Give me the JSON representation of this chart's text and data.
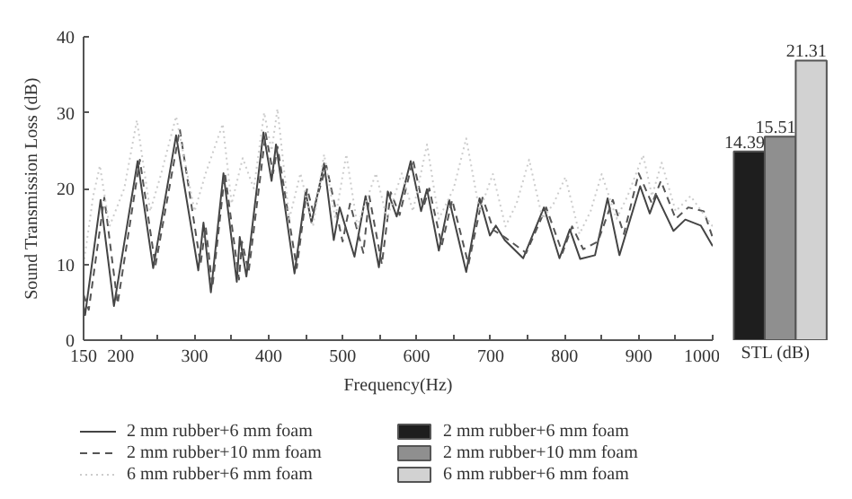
{
  "chart_data": [
    {
      "type": "line",
      "xlabel": "Frequency(Hz)",
      "ylabel": "Sound Transmission Loss (dB)",
      "xlim": [
        150,
        1000
      ],
      "ylim": [
        0,
        40
      ],
      "xticks": [
        150,
        200,
        {
          "value": 250,
          "label": null
        },
        300,
        {
          "value": 350,
          "label": null
        },
        400,
        {
          "value": 450,
          "label": null
        },
        500,
        {
          "value": 550,
          "label": null
        },
        600,
        {
          "value": 650,
          "label": null
        },
        700,
        {
          "value": 750,
          "label": null
        },
        800,
        {
          "value": 850,
          "label": null
        },
        900,
        {
          "value": 950,
          "label": null
        },
        1000
      ],
      "yticks": [
        0,
        10,
        20,
        30,
        40
      ],
      "grid": false,
      "legend": "bottom",
      "series": [
        {
          "name": "2 mm rubber+6 mm foam",
          "color": "#444444",
          "line_style": "solid",
          "x": [
            150,
            152,
            173,
            191,
            223,
            244,
            275,
            305,
            312,
            322,
            339,
            357,
            361,
            370,
            393,
            404,
            410,
            435,
            450,
            458,
            475,
            488,
            496,
            516,
            531,
            549,
            561,
            573,
            592,
            606,
            614,
            630,
            644,
            667,
            685,
            699,
            707,
            719,
            744,
            772,
            793,
            807,
            821,
            841,
            858,
            874,
            902,
            915,
            924,
            947,
            963,
            984,
            1000
          ],
          "values": [
            4.5,
            3.3,
            18.5,
            4.5,
            23.6,
            9.5,
            27,
            9.2,
            15.5,
            6.3,
            22,
            7.7,
            13.6,
            8.4,
            27.4,
            21,
            25.8,
            8.8,
            19.5,
            15.5,
            23.3,
            13.2,
            17.5,
            11,
            19,
            9.6,
            19.6,
            16.3,
            23.6,
            17,
            19.9,
            11.8,
            18.5,
            9,
            18.7,
            13.8,
            15.1,
            13.2,
            10.8,
            17.5,
            10.8,
            14.6,
            10.7,
            11.2,
            18.7,
            11.2,
            20.3,
            16.7,
            19.1,
            14.4,
            15.9,
            15.1,
            12.4
          ]
        },
        {
          "name": "2 mm rubber+10 mm foam",
          "color": "#555555",
          "line_style": "dashed",
          "x": [
            150,
            157,
            178,
            196,
            226,
            247,
            280,
            308,
            315,
            324,
            341,
            360,
            364,
            373,
            396,
            406,
            412,
            438,
            452,
            460,
            478,
            500,
            510,
            528,
            536,
            553,
            565,
            577,
            595,
            609,
            617,
            634,
            648,
            670,
            689,
            704,
            720,
            748,
            775,
            797,
            810,
            825,
            845,
            865,
            880,
            900,
            918,
            930,
            950,
            967,
            988,
            1000
          ],
          "values": [
            6,
            4,
            18.8,
            4.8,
            23.8,
            9.8,
            27.8,
            10,
            15,
            7,
            22,
            8,
            13,
            9,
            27.3,
            22,
            25.5,
            9.5,
            20,
            17,
            23,
            13,
            18,
            11.5,
            19,
            10,
            19.5,
            16.5,
            23.8,
            17.5,
            20,
            12.5,
            18.5,
            10,
            18.8,
            14.5,
            13.5,
            11.5,
            17.5,
            11.5,
            15,
            12,
            13,
            18.5,
            14,
            22,
            18,
            21,
            16,
            17.5,
            17,
            13.5
          ]
        },
        {
          "name": "6 mm rubber+6 mm foam",
          "color": "#cccccc",
          "line_style": "dotted",
          "x": [
            150,
            163,
            172,
            185,
            205,
            222,
            240,
            255,
            275,
            300,
            315,
            338,
            350,
            365,
            380,
            394,
            404,
            412,
            428,
            443,
            460,
            475,
            490,
            505,
            520,
            545,
            560,
            580,
            595,
            614,
            630,
            650,
            667,
            685,
            703,
            720,
            735,
            752,
            770,
            785,
            801,
            820,
            835,
            850,
            870,
            885,
            906,
            918,
            931,
            950,
            970,
            1000
          ],
          "values": [
            10,
            19,
            23,
            15,
            20,
            29,
            17,
            22,
            29.5,
            17,
            22,
            28.5,
            18,
            24,
            20,
            30,
            25,
            30.5,
            16,
            22,
            15,
            24.5,
            16,
            24.5,
            15,
            22,
            16,
            22,
            17,
            25.8,
            16,
            20,
            26.6,
            17,
            21.9,
            15,
            18,
            23.8,
            16,
            18,
            21.5,
            14,
            17,
            21.9,
            16,
            19,
            24.4,
            19,
            23.4,
            17,
            19,
            15
          ]
        }
      ]
    },
    {
      "type": "bar",
      "xlabel": "STL (dB)",
      "categories": [
        null
      ],
      "tick_labels": false,
      "data_labels": true,
      "legend": "bottom",
      "series": [
        {
          "name": "2 mm rubber+6 mm foam",
          "color": "#1e1e1e",
          "values": [
            14.39
          ]
        },
        {
          "name": "2 mm rubber+10 mm foam",
          "color": "#8f8f8f",
          "values": [
            15.51
          ]
        },
        {
          "name": "6 mm rubber+6 mm foam",
          "color": "#d2d2d2",
          "values": [
            21.31
          ]
        }
      ]
    }
  ]
}
